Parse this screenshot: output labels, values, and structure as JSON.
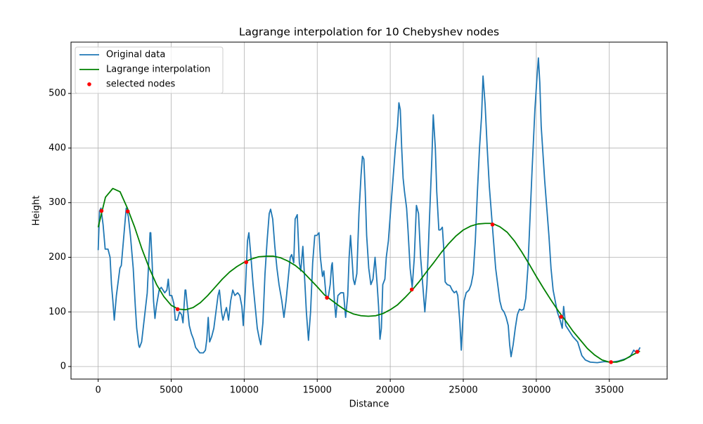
{
  "chart_data": {
    "type": "line",
    "title": "Lagrange interpolation for 10 Chebyshev nodes",
    "xlabel": "Distance",
    "ylabel": "Height",
    "xlim": [
      -1860,
      38960
    ],
    "ylim": [
      -23,
      594
    ],
    "xticks": [
      0,
      5000,
      10000,
      15000,
      20000,
      25000,
      30000,
      35000
    ],
    "yticks": [
      0,
      100,
      200,
      300,
      400,
      500
    ],
    "grid": true,
    "legend": "upper left",
    "series": [
      {
        "name": "Original data",
        "kind": "line",
        "color": "#1f77b4",
        "x": [
          0,
          96,
          192,
          336,
          480,
          672,
          816,
          912,
          1008,
          1104,
          1248,
          1344,
          1488,
          1584,
          1728,
          1920,
          2064,
          2208,
          2400,
          2544,
          2640,
          2784,
          2832,
          2976,
          3168,
          3360,
          3552,
          3600,
          3696,
          3792,
          3888,
          3984,
          4176,
          4320,
          4560,
          4704,
          4800,
          4896,
          5040,
          5184,
          5280,
          5424,
          5568,
          5712,
          5808,
          5952,
          6000,
          6144,
          6240,
          6384,
          6528,
          6672,
          6816,
          6960,
          7200,
          7344,
          7440,
          7536,
          7632,
          7776,
          7920,
          8064,
          8208,
          8304,
          8448,
          8544,
          8688,
          8784,
          8928,
          9072,
          9216,
          9360,
          9552,
          9696,
          9840,
          9936,
          10080,
          10224,
          10320,
          10464,
          10608,
          10752,
          10896,
          11040,
          11136,
          11280,
          11424,
          11568,
          11712,
          11808,
          11952,
          12096,
          12240,
          12384,
          12576,
          12720,
          12864,
          13008,
          13152,
          13248,
          13392,
          13488,
          13632,
          13776,
          13872,
          14016,
          14160,
          14256,
          14400,
          14544,
          14688,
          14832,
          14976,
          15120,
          15216,
          15360,
          15456,
          15600,
          15744,
          15888,
          15984,
          16032,
          16176,
          16272,
          16416,
          16608,
          16800,
          16944,
          17088,
          17184,
          17280,
          17376,
          17472,
          17568,
          17712,
          17856,
          18000,
          18096,
          18192,
          18288,
          18384,
          18528,
          18672,
          18816,
          18960,
          19104,
          19200,
          19296,
          19392,
          19488,
          19632,
          19728,
          19872,
          20064,
          20208,
          20352,
          20496,
          20592,
          20688,
          20784,
          20880,
          20976,
          21120,
          21216,
          21360,
          21504,
          21648,
          21792,
          21936,
          22080,
          22224,
          22368,
          22512,
          22656,
          22848,
          22944,
          23088,
          23184,
          23328,
          23424,
          23568,
          23664,
          23760,
          23904,
          24096,
          24240,
          24384,
          24528,
          24624,
          24768,
          24864,
          24960,
          25056,
          25200,
          25392,
          25536,
          25680,
          25824,
          25968,
          26112,
          26256,
          26352,
          26496,
          26640,
          26784,
          26928,
          27072,
          27216,
          27360,
          27504,
          27648,
          27792,
          27936,
          28080,
          28176,
          28272,
          28416,
          28560,
          28704,
          28848,
          28992,
          29136,
          29280,
          29424,
          29568,
          29712,
          29904,
          30048,
          30144,
          30240,
          30336,
          30432,
          30576,
          30720,
          30864,
          31008,
          31152,
          31296,
          31440,
          31632,
          31776,
          31872,
          32016,
          32256,
          32496,
          32832,
          33120,
          33360,
          33696,
          34176,
          34656,
          35136,
          35616,
          36096,
          36432,
          36672,
          36864,
          37008,
          37104
        ],
        "values": [
          213,
          285,
          290,
          260,
          215,
          215,
          200,
          150,
          120,
          85,
          130,
          150,
          180,
          185,
          230,
          290,
          275,
          240,
          180,
          110,
          70,
          38,
          35,
          45,
          90,
          135,
          245,
          245,
          190,
          120,
          88,
          110,
          140,
          145,
          135,
          140,
          160,
          130,
          130,
          115,
          85,
          85,
          100,
          95,
          80,
          140,
          140,
          100,
          75,
          60,
          50,
          35,
          30,
          25,
          25,
          30,
          50,
          90,
          45,
          55,
          70,
          100,
          130,
          140,
          100,
          85,
          100,
          108,
          85,
          120,
          140,
          130,
          135,
          130,
          110,
          75,
          140,
          230,
          245,
          200,
          150,
          110,
          70,
          50,
          40,
          80,
          170,
          230,
          280,
          288,
          270,
          220,
          180,
          150,
          120,
          90,
          120,
          160,
          200,
          205,
          190,
          270,
          278,
          190,
          175,
          220,
          150,
          100,
          48,
          100,
          190,
          240,
          240,
          245,
          200,
          165,
          175,
          130,
          125,
          150,
          185,
          190,
          120,
          90,
          130,
          135,
          135,
          90,
          130,
          200,
          240,
          200,
          160,
          150,
          170,
          280,
          350,
          385,
          380,
          320,
          240,
          180,
          150,
          160,
          200,
          150,
          110,
          50,
          70,
          150,
          160,
          200,
          230,
          300,
          350,
          400,
          440,
          483,
          470,
          400,
          345,
          320,
          290,
          250,
          180,
          145,
          200,
          295,
          280,
          200,
          150,
          100,
          150,
          250,
          380,
          461,
          400,
          320,
          250,
          250,
          255,
          215,
          155,
          150,
          148,
          140,
          135,
          138,
          130,
          80,
          30,
          80,
          120,
          135,
          140,
          150,
          170,
          230,
          320,
          400,
          460,
          532,
          480,
          400,
          330,
          280,
          230,
          180,
          150,
          120,
          105,
          100,
          90,
          75,
          40,
          18,
          40,
          70,
          95,
          105,
          103,
          105,
          125,
          180,
          270,
          360,
          470,
          530,
          565,
          520,
          440,
          400,
          340,
          290,
          240,
          180,
          140,
          120,
          100,
          85,
          70,
          110,
          75,
          65,
          55,
          45,
          20,
          12,
          8,
          7,
          9,
          8,
          10,
          14,
          18,
          30,
          25,
          30,
          35
        ]
      },
      {
        "name": "Lagrange interpolation",
        "kind": "line",
        "color": "#008000",
        "x": [
          0,
          500,
          1000,
          1500,
          2000,
          2500,
          3000,
          3500,
          4000,
          4500,
          5000,
          5500,
          6000,
          6500,
          7000,
          7500,
          8000,
          8500,
          9000,
          9500,
          10000,
          10500,
          11000,
          11500,
          12000,
          12500,
          13000,
          13500,
          14000,
          14500,
          15000,
          15500,
          16000,
          16500,
          17000,
          17500,
          18000,
          18500,
          19000,
          19500,
          20000,
          20500,
          21000,
          21500,
          22000,
          22500,
          23000,
          23500,
          24000,
          24500,
          25000,
          25500,
          26000,
          26500,
          27000,
          27500,
          28000,
          28500,
          29000,
          29500,
          30000,
          30500,
          31000,
          31500,
          32000,
          32500,
          33000,
          33500,
          34000,
          34500,
          35000,
          35500,
          36000,
          36500,
          37000,
          37100
        ],
        "values": [
          255,
          310,
          326,
          320,
          290,
          255,
          215,
          180,
          150,
          128,
          112,
          105,
          104,
          108,
          117,
          130,
          145,
          160,
          173,
          183,
          191,
          197,
          201,
          202,
          202,
          199,
          193,
          185,
          174,
          160,
          146,
          131,
          121,
          111,
          102,
          96,
          93,
          92,
          93,
          97,
          104,
          113,
          126,
          140,
          156,
          174,
          191,
          209,
          225,
          239,
          250,
          257,
          261,
          262,
          262,
          256,
          246,
          230,
          210,
          188,
          165,
          143,
          122,
          102,
          84,
          65,
          49,
          33,
          21,
          12,
          8,
          8,
          12,
          20,
          27,
          28
        ]
      },
      {
        "name": "selected nodes",
        "kind": "scatter",
        "color": "#ff0000",
        "x": [
          229,
          2024,
          5439,
          10139,
          15666,
          21474,
          27001,
          31701,
          35116,
          36911
        ],
        "values": [
          285,
          284,
          105,
          191,
          126,
          141,
          260,
          91,
          8,
          27
        ]
      }
    ]
  }
}
